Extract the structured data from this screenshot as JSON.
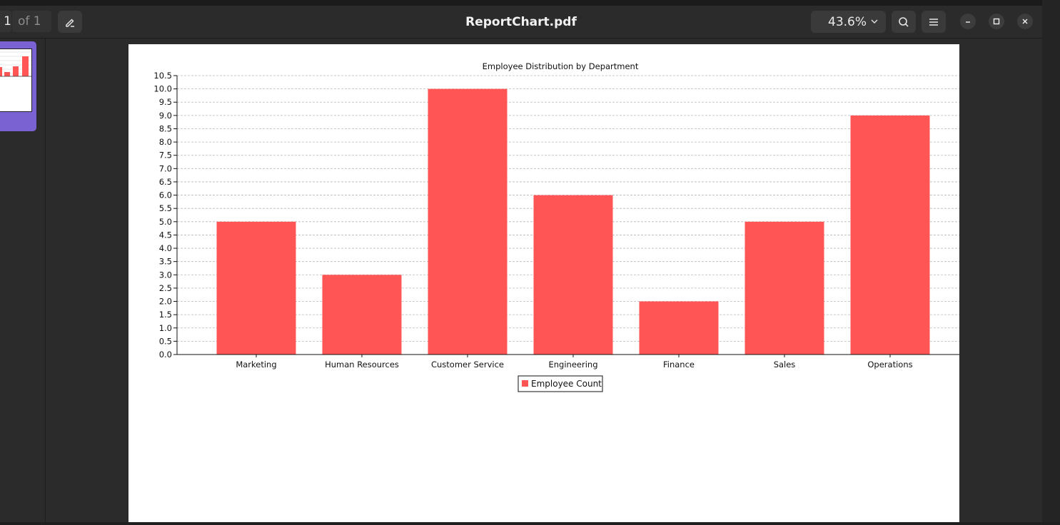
{
  "window": {
    "title": "ReportChart.pdf",
    "page_current": "1",
    "page_total_label": "of 1",
    "zoom": "43.6%"
  },
  "icons": {
    "annotate": "pen-annotate-icon",
    "zoom_dropdown": "chevron-down-icon",
    "search": "search-icon",
    "menu": "hamburger-menu-icon",
    "minimize": "minimize-icon",
    "maximize": "maximize-icon",
    "close": "close-icon"
  },
  "colors": {
    "accent": "#7b62d2",
    "bar": "#ff5555",
    "background": "#2b2b2b"
  },
  "chart_data": {
    "type": "bar",
    "title": "Employee Distribution by Department",
    "xlabel": "",
    "ylabel": "",
    "categories": [
      "Marketing",
      "Human Resources",
      "Customer Service",
      "Engineering",
      "Finance",
      "Sales",
      "Operations"
    ],
    "series": [
      {
        "name": "Employee Count",
        "values": [
          5,
          3,
          10,
          6,
          2,
          5,
          9
        ],
        "color": "#ff5555"
      }
    ],
    "ylim": [
      0,
      10.5
    ],
    "ytick_step": 0.5,
    "grid": true,
    "legend_position": "bottom-center"
  }
}
